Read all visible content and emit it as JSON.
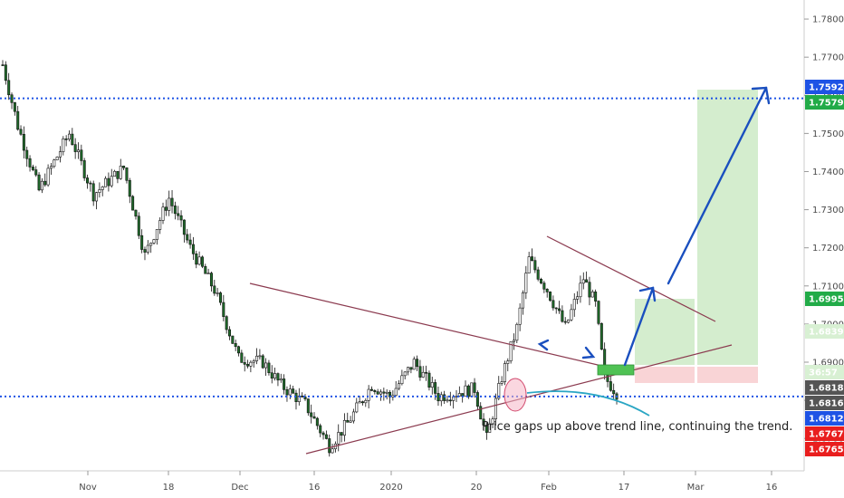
{
  "chart_data": {
    "type": "candlestick",
    "title": "",
    "xlabel": "",
    "ylabel": "",
    "ylim": [
      1.6615,
      1.785
    ],
    "x_tick_labels": [
      "Nov",
      "18",
      "Dec",
      "16",
      "2020",
      "20",
      "Feb",
      "17",
      "Mar",
      "16"
    ],
    "y_tick_values": [
      1.78,
      1.77,
      1.76,
      1.75,
      1.74,
      1.73,
      1.72,
      1.71,
      1.7,
      1.69,
      1.68,
      1.67
    ],
    "y_tick_labels": [
      "1.78000",
      "1.77000",
      "1.76000",
      "1.75000",
      "1.74000",
      "1.73000",
      "1.72000",
      "1.71000",
      "1.70000",
      "1.69000",
      "1.68000",
      "1.67000"
    ],
    "candles_count": 120,
    "anchor_closes": [
      [
        0,
        1.768
      ],
      [
        5,
        1.752
      ],
      [
        12,
        1.735
      ],
      [
        22,
        1.75
      ],
      [
        30,
        1.734
      ],
      [
        40,
        1.741
      ],
      [
        47,
        1.718
      ],
      [
        55,
        1.733
      ],
      [
        62,
        1.72
      ],
      [
        70,
        1.709
      ],
      [
        78,
        1.691
      ],
      [
        86,
        1.69
      ],
      [
        92,
        1.684
      ],
      [
        100,
        1.679
      ],
      [
        108,
        1.668
      ],
      [
        114,
        1.674
      ],
      [
        122,
        1.684
      ],
      [
        128,
        1.681
      ],
      [
        136,
        1.69
      ],
      [
        144,
        1.681
      ],
      [
        150,
        1.682
      ],
      [
        156,
        1.683
      ],
      [
        160,
        1.67
      ],
      [
        165,
        1.686
      ],
      [
        170,
        1.699
      ],
      [
        174,
        1.717
      ],
      [
        180,
        1.709
      ],
      [
        186,
        1.699
      ],
      [
        192,
        1.712
      ],
      [
        196,
        1.705
      ],
      [
        199,
        1.686
      ],
      [
        203,
        1.682
      ]
    ],
    "price_badges": [
      {
        "label": "1.75920",
        "value": 1.7592,
        "color": "#1e53e5"
      },
      {
        "label": "1.75791",
        "value": 1.75791,
        "color": "#22ab48"
      },
      {
        "label": "1.69958",
        "value": 1.69958,
        "color": "#22ab48"
      },
      {
        "label": "1.68396",
        "value": 1.68396,
        "color": "#d8f0d3",
        "text_color": "#333333"
      },
      {
        "label": "36:57",
        "value": 1.681,
        "color": "#d8f0d3",
        "text_color": "#333333"
      },
      {
        "label": "1.68180",
        "value": 1.6818,
        "color": "#555555"
      },
      {
        "label": "1.68160",
        "value": 1.6816,
        "color": "#555555"
      },
      {
        "label": "1.68124",
        "value": 1.68124,
        "color": "#1e53e5"
      },
      {
        "label": "1.67679",
        "value": 1.67679,
        "color": "#e91e1e"
      },
      {
        "label": "1.67655",
        "value": 1.67655,
        "color": "#e91e1e"
      }
    ],
    "horizontal_levels": [
      1.7592,
      1.681
    ],
    "annotation": "Price gaps up above trend line, continuing the trend.",
    "grid": false
  }
}
